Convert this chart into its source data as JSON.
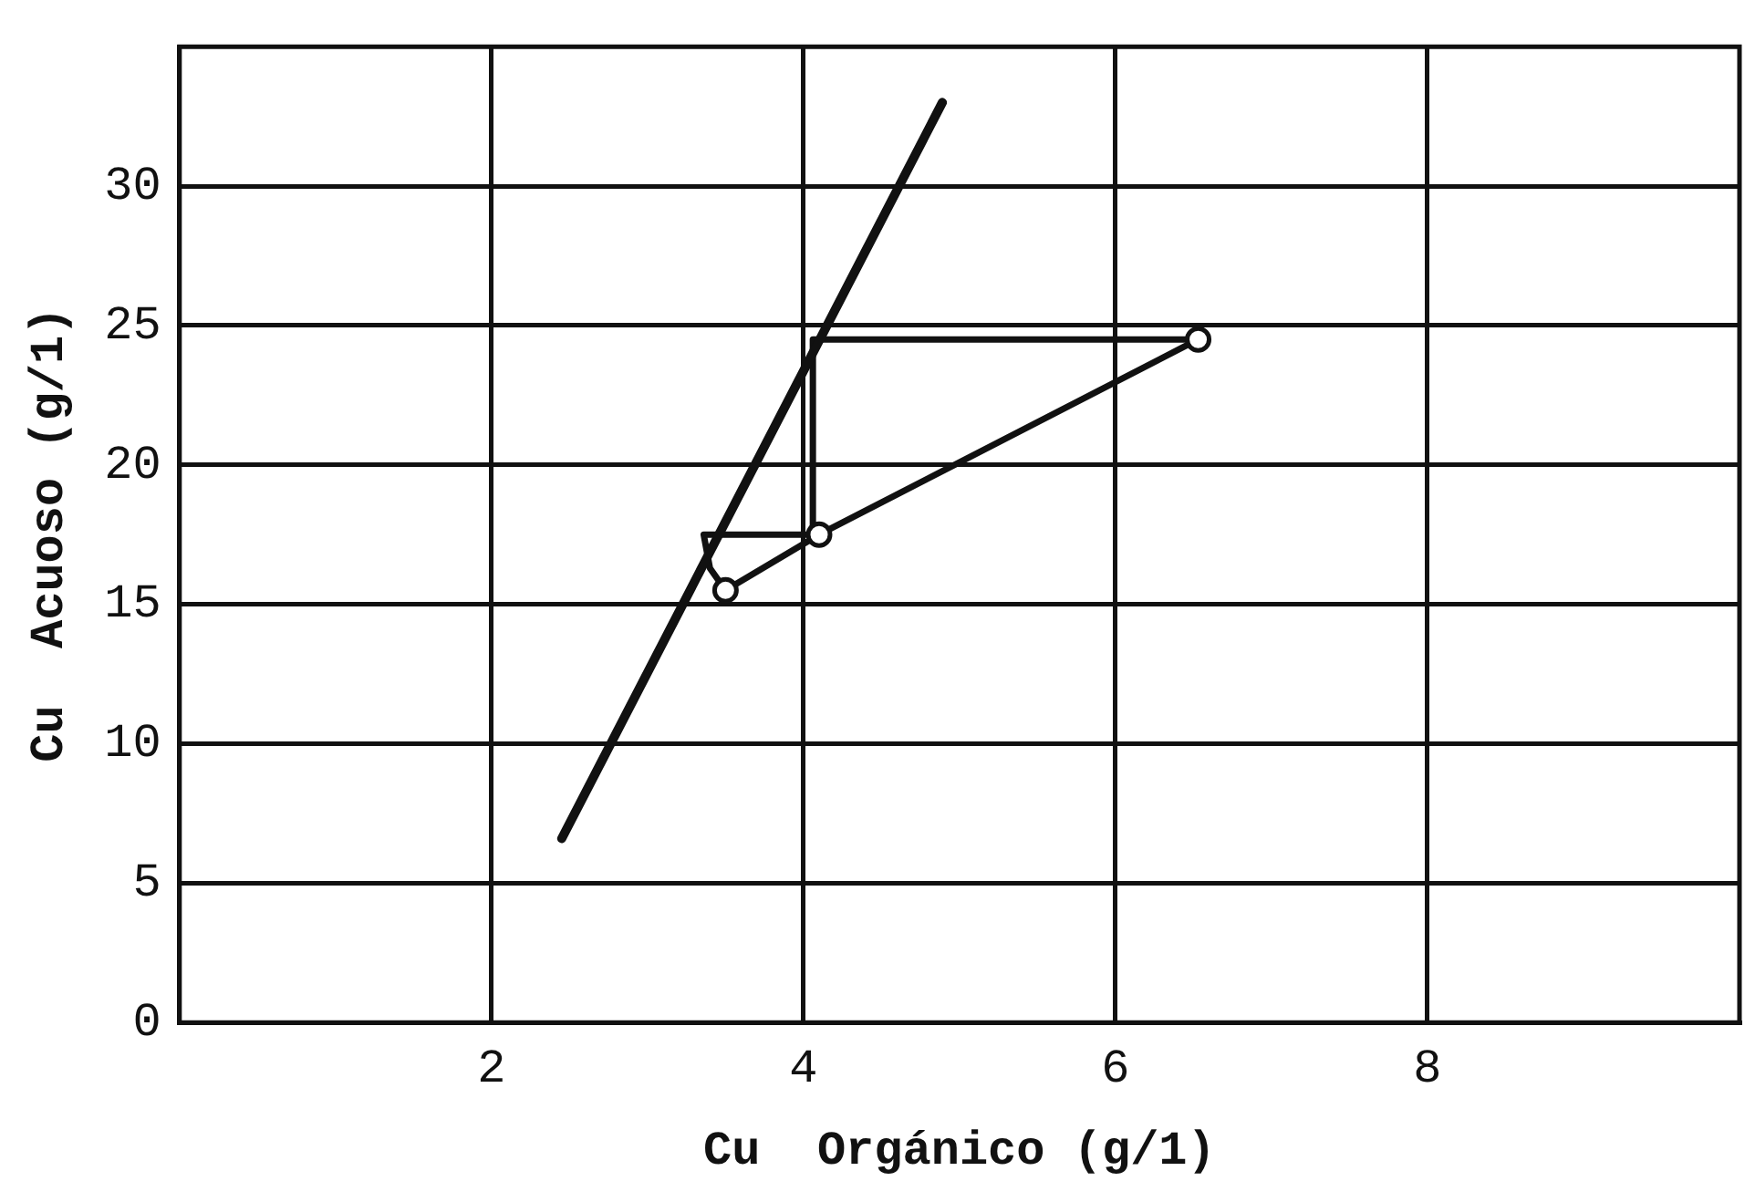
{
  "chart_data": {
    "type": "line",
    "xlabel": "Cu  Orgánico (g/1)",
    "ylabel": "Cu  Acuoso (g/1)",
    "xlim": [
      0,
      10
    ],
    "xticks": [
      2,
      4,
      6,
      8
    ],
    "ylim": [
      0,
      35
    ],
    "yticks": [
      0,
      5,
      10,
      15,
      20,
      25,
      30
    ],
    "grid": true,
    "legend": false,
    "series": [
      {
        "color": "#111111",
        "marker": "none",
        "x": [
          2.45,
          4.89
        ],
        "values": [
          6.6,
          33.0
        ]
      },
      {
        "color": "#111111",
        "marker": "circle",
        "x": [
          3.5,
          4.1,
          6.53
        ],
        "values": [
          15.5,
          17.5,
          24.5
        ]
      },
      {
        "color": "#111111",
        "marker": "none",
        "x": [
          6.53,
          4.06,
          4.06,
          3.36,
          3.4,
          3.5
        ],
        "values": [
          24.5,
          24.5,
          17.5,
          17.5,
          16.3,
          15.5
        ]
      }
    ]
  }
}
